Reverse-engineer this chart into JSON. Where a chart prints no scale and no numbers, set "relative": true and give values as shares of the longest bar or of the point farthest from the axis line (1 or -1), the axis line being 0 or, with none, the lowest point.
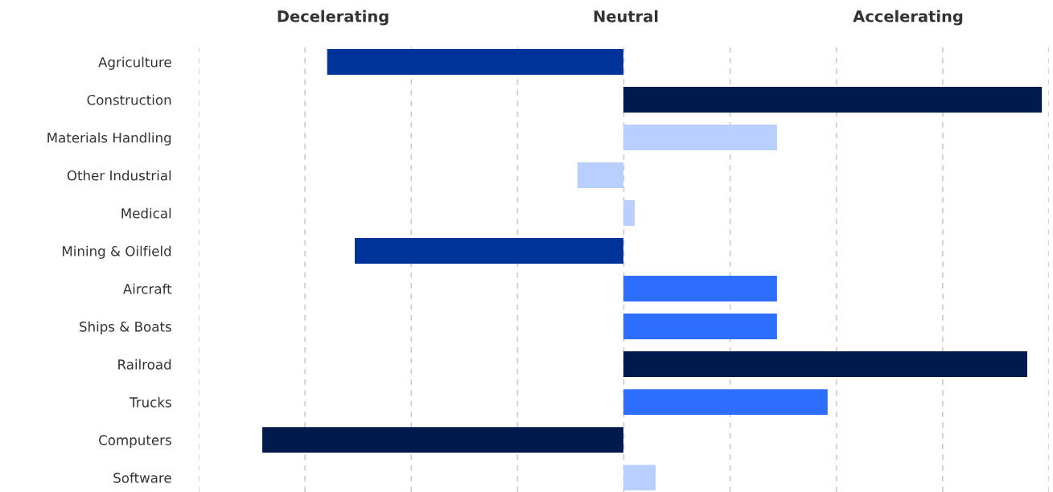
{
  "chart_data": {
    "type": "bar",
    "orientation": "horizontal",
    "relative": true,
    "grid": "x",
    "categories": [
      "Agriculture",
      "Construction",
      "Materials Handling",
      "Other Industrial",
      "Medical",
      "Mining & Oilfield",
      "Aircraft",
      "Ships & Boats",
      "Railroad",
      "Trucks",
      "Computers",
      "Software"
    ],
    "values": [
      -0.708,
      1.0,
      0.367,
      -0.11,
      0.027,
      -0.642,
      0.367,
      0.367,
      0.965,
      0.488,
      -0.863,
      0.077
    ],
    "colors": [
      "#003399",
      "#001a4d",
      "#b8cfff",
      "#b8cfff",
      "#b8cfff",
      "#003399",
      "#2e6eff",
      "#2e6eff",
      "#001a4d",
      "#2e6eff",
      "#001a4d",
      "#b8cfff"
    ],
    "annotations": [
      "Decelerating",
      "Neutral",
      "Accelerating"
    ]
  }
}
